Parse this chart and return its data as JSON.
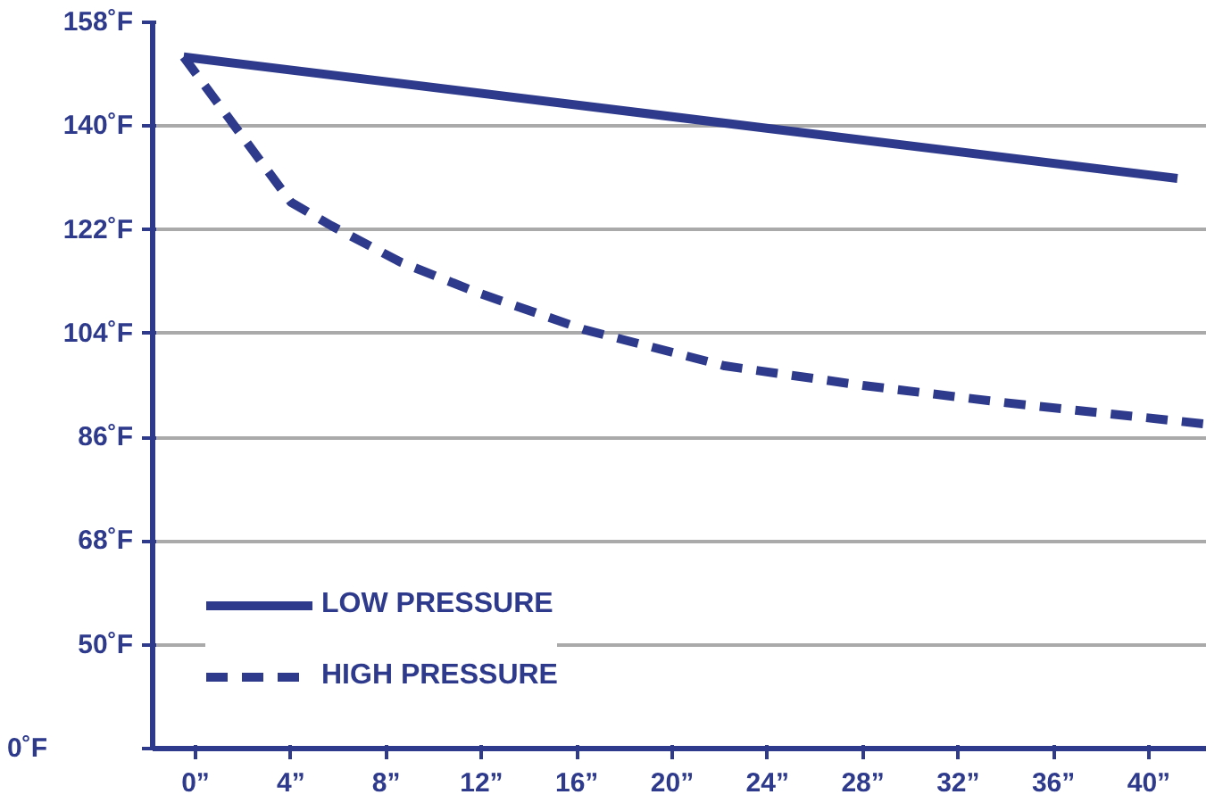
{
  "chart_data": {
    "type": "line",
    "x": [
      -0.5,
      4,
      5.7,
      8.6,
      11.9,
      16.3,
      22.2,
      28,
      34,
      42.4
    ],
    "series": [
      {
        "name": "LOW PRESSURE",
        "color": "#2e3a8c",
        "line_style": "solid",
        "x": [
          -0.5,
          41.2
        ],
        "values": [
          152,
          130.9
        ]
      },
      {
        "name": "HIGH PRESSURE",
        "color": "#2e3a8c",
        "line_style": "dashed",
        "values": [
          152,
          126.8,
          122.7,
          116.4,
          111,
          104.7,
          98.4,
          95,
          92,
          88.3
        ]
      }
    ],
    "xlim": [
      -1.8,
      42.4
    ],
    "xticks": [
      {
        "value": 0,
        "label": "0”"
      },
      {
        "value": 4,
        "label": "4”"
      },
      {
        "value": 8,
        "label": "8”"
      },
      {
        "value": 12,
        "label": "12”"
      },
      {
        "value": 16,
        "label": "16”"
      },
      {
        "value": 20,
        "label": "20”"
      },
      {
        "value": 24,
        "label": "24”"
      },
      {
        "value": 28,
        "label": "28”"
      },
      {
        "value": 32,
        "label": "32”"
      },
      {
        "value": 36,
        "label": "36”"
      },
      {
        "value": 40,
        "label": "40”"
      }
    ],
    "ylim": [
      32,
      158
    ],
    "yticks": [
      {
        "value": 32,
        "label": null
      },
      {
        "value": 50,
        "label": "50˚F"
      },
      {
        "value": 68,
        "label": "68˚F"
      },
      {
        "value": 86,
        "label": "86˚F"
      },
      {
        "value": 104,
        "label": "104˚F"
      },
      {
        "value": 122,
        "label": "122˚F"
      },
      {
        "value": 140,
        "label": "140˚F"
      },
      {
        "value": 158,
        "label": "158˚F"
      }
    ],
    "annotations": [
      "0˚F"
    ],
    "grid": "y",
    "legend": "bottom left",
    "marker": "none"
  }
}
